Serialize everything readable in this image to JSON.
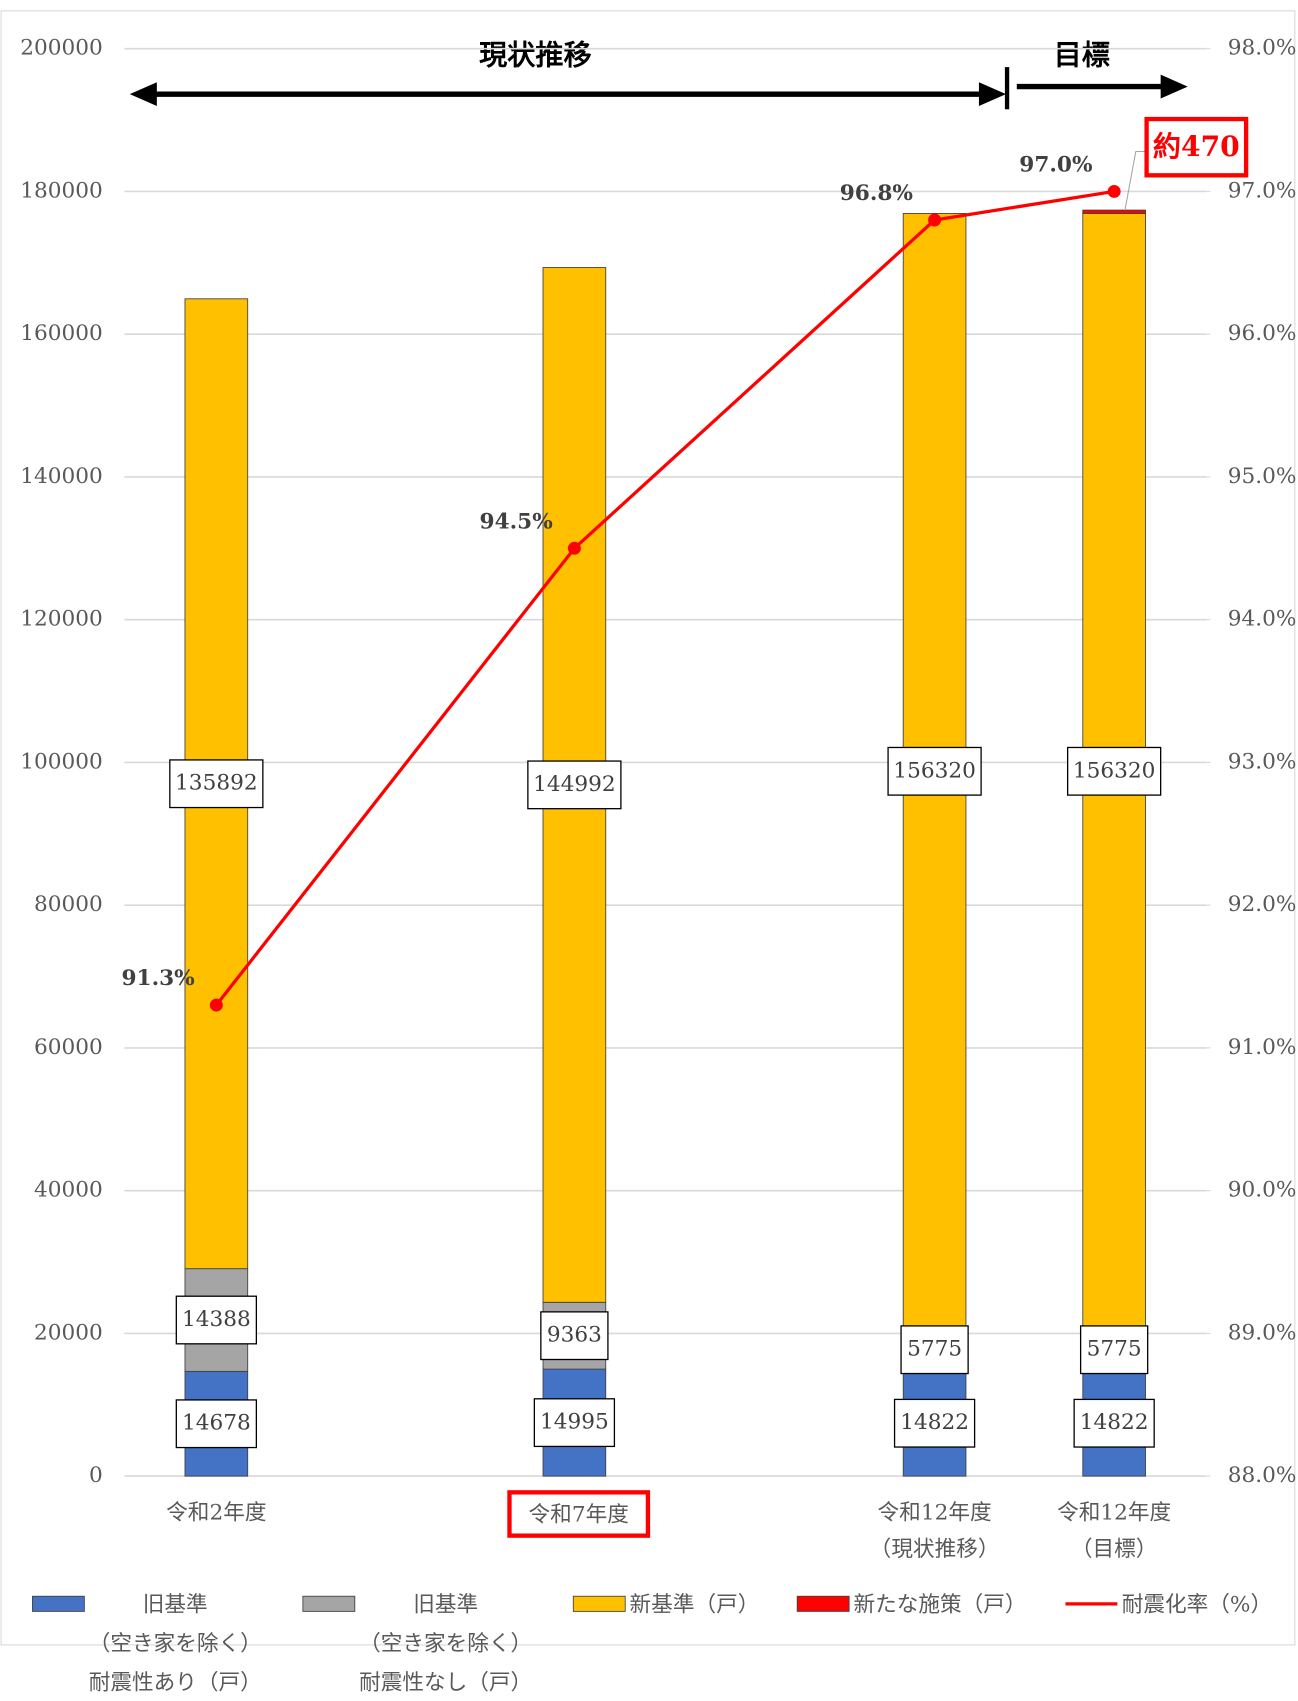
{
  "chart_data": {
    "type": "bar",
    "categories": [
      "令和2年度",
      "令和7年度",
      "令和12年度\n（現状推移）",
      "令和12年度\n（目標）"
    ],
    "series": [
      {
        "name": "旧基準\n（空き家を除く）\n耐震性あり（戸）",
        "color": "#4472c4",
        "values": [
          14678,
          14995,
          14822,
          14822
        ]
      },
      {
        "name": "旧基準\n（空き家を除く）\n耐震性なし（戸）",
        "color": "#a5a5a5",
        "values": [
          14388,
          9363,
          5775,
          5775
        ]
      },
      {
        "name": "新基準（戸）",
        "color": "#ffc000",
        "values": [
          135892,
          144992,
          156320,
          156320
        ]
      },
      {
        "name": "新たな施策（戸）",
        "color": "#ff0000",
        "values": [
          null,
          null,
          null,
          470
        ],
        "value_labels": [
          null,
          null,
          null,
          "約470"
        ]
      },
      {
        "name": "耐震化率（%）",
        "color": "#ff0000",
        "type": "line",
        "axis": "y2",
        "values": [
          91.3,
          94.5,
          96.8,
          97.0
        ],
        "value_labels": [
          "91.3%",
          "94.5%",
          "96.8%",
          "97.0%"
        ]
      }
    ],
    "annotations": [
      "現状推移",
      "目標"
    ],
    "ylim": [
      0,
      200000
    ],
    "yticks": [
      0,
      20000,
      40000,
      60000,
      80000,
      100000,
      120000,
      140000,
      160000,
      180000,
      200000
    ],
    "y2lim": [
      88,
      98
    ],
    "y2ticks": [
      {
        "value": 88,
        "label": "88.0%"
      },
      {
        "value": 89,
        "label": "89.0%"
      },
      {
        "value": 90,
        "label": "90.0%"
      },
      {
        "value": 91,
        "label": "91.0%"
      },
      {
        "value": 92,
        "label": "92.0%"
      },
      {
        "value": 93,
        "label": "93.0%"
      },
      {
        "value": 94,
        "label": "94.0%"
      },
      {
        "value": 95,
        "label": "95.0%"
      },
      {
        "value": 96,
        "label": "96.0%"
      },
      {
        "value": 97,
        "label": "97.0%"
      },
      {
        "value": 98,
        "label": "98.0%"
      }
    ],
    "grid": true,
    "legend": "bottom"
  }
}
